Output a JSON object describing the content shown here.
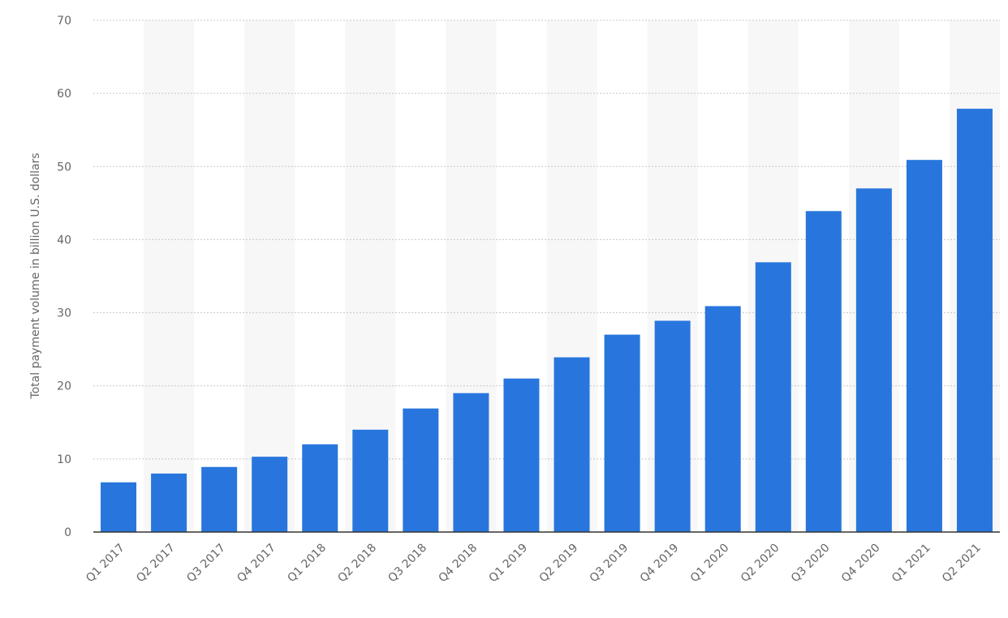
{
  "chart_data": {
    "type": "bar",
    "y_axis_label": "Total payment volume in billion U.S. dollars",
    "categories": [
      "Q1 2017",
      "Q2 2017",
      "Q3 2017",
      "Q4 2017",
      "Q1 2018",
      "Q2 2018",
      "Q3 2018",
      "Q4 2018",
      "Q1 2019",
      "Q2 2019",
      "Q3 2019",
      "Q4 2019",
      "Q1 2020",
      "Q2 2020",
      "Q3 2020",
      "Q4 2020",
      "Q1 2021",
      "Q2 2021"
    ],
    "values": [
      6.8,
      8,
      8.9,
      10.3,
      12,
      14,
      16.9,
      19,
      21,
      23.9,
      27,
      28.9,
      30.9,
      36.9,
      43.9,
      47,
      50.9,
      57.9
    ],
    "color": "#2876dd",
    "ylim": [
      0,
      70
    ],
    "yticks": [
      0,
      10,
      20,
      30,
      40,
      50,
      60,
      70
    ],
    "grid": true
  }
}
